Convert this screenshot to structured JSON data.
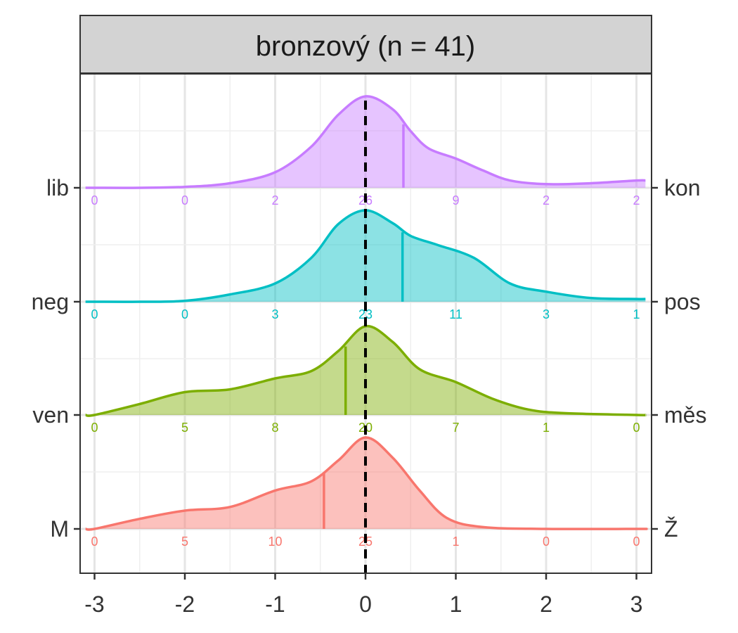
{
  "chart_data": {
    "type": "ridgeline-density",
    "facet_title": "bronzový (n = 41)",
    "x_ticks": [
      -3,
      -2,
      -1,
      0,
      1,
      2,
      3
    ],
    "xlim": [
      -3,
      3
    ],
    "reference_line_x": 0,
    "grid": true,
    "rows": [
      {
        "left_label": "lib",
        "right_label": "kon",
        "color": "#C77CFF",
        "mean": 0.42,
        "counts": [
          "0",
          "0",
          "2",
          "26",
          "9",
          "2",
          "2"
        ],
        "density": [
          [
            -3,
            0
          ],
          [
            -2.5,
            0
          ],
          [
            -2,
            0.01
          ],
          [
            -1.5,
            0.05
          ],
          [
            -1,
            0.17
          ],
          [
            -0.6,
            0.45
          ],
          [
            -0.3,
            0.8
          ],
          [
            0,
            1.0
          ],
          [
            0.3,
            0.86
          ],
          [
            0.5,
            0.62
          ],
          [
            0.7,
            0.43
          ],
          [
            1.0,
            0.32
          ],
          [
            1.3,
            0.19
          ],
          [
            1.6,
            0.08
          ],
          [
            2.0,
            0.04
          ],
          [
            2.5,
            0.05
          ],
          [
            3.0,
            0.08
          ]
        ]
      },
      {
        "left_label": "neg",
        "right_label": "pos",
        "color": "#00BFC4",
        "mean": 0.41,
        "counts": [
          "0",
          "0",
          "3",
          "23",
          "11",
          "3",
          "1"
        ],
        "density": [
          [
            -3,
            0
          ],
          [
            -2.5,
            0
          ],
          [
            -2,
            0.01
          ],
          [
            -1.5,
            0.08
          ],
          [
            -1,
            0.2
          ],
          [
            -0.6,
            0.48
          ],
          [
            -0.3,
            0.85
          ],
          [
            0,
            1.0
          ],
          [
            0.3,
            0.86
          ],
          [
            0.5,
            0.72
          ],
          [
            0.8,
            0.62
          ],
          [
            1.2,
            0.48
          ],
          [
            1.6,
            0.2
          ],
          [
            2.0,
            0.11
          ],
          [
            2.5,
            0.04
          ],
          [
            3.0,
            0.03
          ]
        ]
      },
      {
        "left_label": "ven",
        "right_label": "měs",
        "color": "#7CAE00",
        "mean": -0.22,
        "counts": [
          "0",
          "5",
          "8",
          "20",
          "7",
          "1",
          "0"
        ],
        "density": [
          [
            -3,
            0
          ],
          [
            -2.5,
            0.12
          ],
          [
            -2,
            0.25
          ],
          [
            -1.5,
            0.28
          ],
          [
            -1,
            0.4
          ],
          [
            -0.6,
            0.48
          ],
          [
            -0.3,
            0.7
          ],
          [
            0,
            0.97
          ],
          [
            0.3,
            0.8
          ],
          [
            0.6,
            0.5
          ],
          [
            1.0,
            0.36
          ],
          [
            1.4,
            0.18
          ],
          [
            1.8,
            0.06
          ],
          [
            2.2,
            0.02
          ],
          [
            3.0,
            0.0
          ]
        ]
      },
      {
        "left_label": "M",
        "right_label": "Ž",
        "color": "#F8766D",
        "mean": -0.46,
        "counts": [
          "0",
          "5",
          "10",
          "25",
          "1",
          "0",
          "0"
        ],
        "density": [
          [
            -3,
            0
          ],
          [
            -2.5,
            0.11
          ],
          [
            -2,
            0.2
          ],
          [
            -1.5,
            0.24
          ],
          [
            -1,
            0.42
          ],
          [
            -0.6,
            0.52
          ],
          [
            -0.3,
            0.75
          ],
          [
            0,
            1.0
          ],
          [
            0.3,
            0.78
          ],
          [
            0.6,
            0.42
          ],
          [
            0.9,
            0.12
          ],
          [
            1.3,
            0.02
          ],
          [
            2.0,
            0.0
          ],
          [
            3.0,
            0.0
          ]
        ]
      }
    ]
  }
}
